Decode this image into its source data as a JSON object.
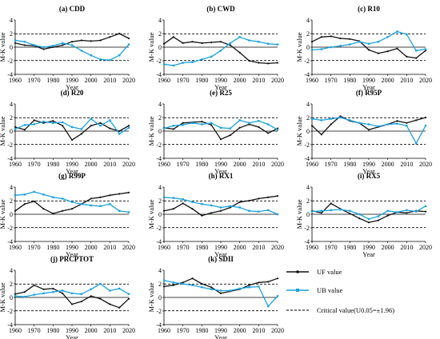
{
  "legend": {
    "uf_label": "UF value",
    "ub_label": "UB value",
    "crit_label": "Critical value(U0.05=±1.96)"
  },
  "colors": {
    "uf": "#111111",
    "ub": "#1aa3e0",
    "critical": "#000000",
    "zero": "#000000"
  },
  "chart_data": [
    {
      "type": "line",
      "title": "(a) CDD",
      "xlabel": "Year",
      "ylabel": "M-K value",
      "xlim": [
        1960,
        2020
      ],
      "ylim": [
        -4,
        4
      ],
      "xticks": [
        1960,
        1970,
        1980,
        1990,
        2000,
        2010,
        2020
      ],
      "yticks": [
        -4,
        -2,
        0,
        2,
        4
      ],
      "critical": [
        -1.96,
        1.96
      ],
      "x": [
        1960,
        1965,
        1970,
        1975,
        1980,
        1985,
        1990,
        1995,
        2000,
        2005,
        2010,
        2015,
        2020
      ],
      "series": [
        {
          "name": "UF value",
          "values": [
            0.6,
            0.3,
            0.2,
            -0.3,
            0.0,
            0.3,
            0.8,
            1.0,
            0.9,
            1.0,
            1.5,
            2.0,
            1.3
          ]
        },
        {
          "name": "UB value",
          "values": [
            1.0,
            0.8,
            0.3,
            0.0,
            0.2,
            0.6,
            0.3,
            -0.5,
            -1.2,
            -1.8,
            -1.9,
            -1.2,
            0.4
          ]
        }
      ]
    },
    {
      "type": "line",
      "title": "(b) CWD",
      "xlabel": "Year",
      "ylabel": "M-K value",
      "xlim": [
        1960,
        2020
      ],
      "ylim": [
        -4,
        4
      ],
      "xticks": [
        1960,
        1970,
        1980,
        1990,
        2000,
        2010,
        2020
      ],
      "yticks": [
        -4,
        -2,
        0,
        2,
        4
      ],
      "critical": [
        -1.96,
        1.96
      ],
      "x": [
        1960,
        1965,
        1970,
        1975,
        1980,
        1985,
        1990,
        1995,
        2000,
        2005,
        2010,
        2015,
        2020
      ],
      "series": [
        {
          "name": "UF value",
          "values": [
            0.5,
            1.5,
            0.6,
            0.8,
            0.6,
            0.7,
            0.8,
            0.3,
            -0.8,
            -2.0,
            -2.3,
            -2.4,
            -2.3
          ]
        },
        {
          "name": "UB value",
          "values": [
            -2.5,
            -2.7,
            -2.3,
            -2.2,
            -1.8,
            -1.4,
            -0.5,
            0.6,
            1.5,
            1.0,
            0.8,
            0.5,
            0.4
          ]
        }
      ]
    },
    {
      "type": "line",
      "title": "(c) R10",
      "xlabel": "Year",
      "ylabel": "M-K value",
      "xlim": [
        1960,
        2020
      ],
      "ylim": [
        -4,
        4
      ],
      "xticks": [
        1960,
        1970,
        1980,
        1990,
        2000,
        2010,
        2020
      ],
      "yticks": [
        -4,
        -2,
        0,
        2,
        4
      ],
      "critical": [
        -1.96,
        1.96
      ],
      "x": [
        1960,
        1965,
        1970,
        1975,
        1980,
        1985,
        1990,
        1995,
        2000,
        2005,
        2010,
        2015,
        2020
      ],
      "series": [
        {
          "name": "UF value",
          "values": [
            0.8,
            1.5,
            1.6,
            1.3,
            1.2,
            0.9,
            -0.4,
            -0.9,
            -0.6,
            -0.2,
            -1.4,
            -1.6,
            -0.5
          ]
        },
        {
          "name": "UB value",
          "values": [
            -0.4,
            -0.3,
            0.0,
            0.2,
            0.4,
            0.8,
            0.5,
            0.8,
            1.5,
            2.3,
            1.9,
            -0.5,
            -0.3
          ]
        }
      ]
    },
    {
      "type": "line",
      "title": "(d) R20",
      "xlabel": "Year",
      "ylabel": "M-K value",
      "xlim": [
        1960,
        2020
      ],
      "ylim": [
        -4,
        4
      ],
      "xticks": [
        1960,
        1970,
        1980,
        1990,
        2000,
        2010,
        2020
      ],
      "yticks": [
        -4,
        -2,
        0,
        2,
        4
      ],
      "critical": [
        -1.96,
        1.96
      ],
      "x": [
        1960,
        1965,
        1970,
        1975,
        1980,
        1985,
        1990,
        1995,
        2000,
        2005,
        2010,
        2015,
        2020
      ],
      "series": [
        {
          "name": "UF value",
          "values": [
            0.6,
            0.2,
            1.6,
            1.2,
            1.5,
            0.8,
            -1.3,
            -0.4,
            0.8,
            1.2,
            0.4,
            0.0,
            0.8
          ]
        },
        {
          "name": "UB value",
          "values": [
            0.3,
            0.9,
            1.0,
            1.4,
            1.2,
            1.3,
            0.6,
            0.3,
            1.8,
            0.8,
            1.6,
            -0.4,
            0.5
          ]
        }
      ]
    },
    {
      "type": "line",
      "title": "(e) R25",
      "xlabel": "Year",
      "ylabel": "M-K value",
      "xlim": [
        1960,
        2020
      ],
      "ylim": [
        -4,
        4
      ],
      "xticks": [
        1960,
        1970,
        1980,
        1990,
        2000,
        2010,
        2020
      ],
      "yticks": [
        -4,
        -2,
        0,
        2,
        4
      ],
      "critical": [
        -1.96,
        1.96
      ],
      "x": [
        1960,
        1965,
        1970,
        1975,
        1980,
        1985,
        1990,
        1995,
        2000,
        2005,
        2010,
        2015,
        2020
      ],
      "series": [
        {
          "name": "UF value",
          "values": [
            0.5,
            0.3,
            1.2,
            1.3,
            1.4,
            0.9,
            -1.2,
            -0.6,
            0.5,
            1.0,
            0.6,
            -0.3,
            0.4
          ]
        },
        {
          "name": "UB value",
          "values": [
            0.4,
            0.8,
            0.9,
            1.2,
            1.0,
            1.2,
            0.5,
            0.4,
            1.6,
            1.2,
            1.5,
            1.0,
            0.2
          ]
        }
      ]
    },
    {
      "type": "line",
      "title": "(f) R95P",
      "xlabel": "Year",
      "ylabel": "M-K value",
      "xlim": [
        1960,
        2020
      ],
      "ylim": [
        -4,
        4
      ],
      "xticks": [
        1960,
        1970,
        1980,
        1990,
        2000,
        2010,
        2020
      ],
      "yticks": [
        -4,
        -2,
        0,
        2,
        4
      ],
      "critical": [
        -1.96,
        1.96
      ],
      "x": [
        1960,
        1965,
        1970,
        1975,
        1980,
        1985,
        1990,
        1995,
        2000,
        2005,
        2010,
        2015,
        2020
      ],
      "series": [
        {
          "name": "UF value",
          "values": [
            0.8,
            -0.5,
            1.0,
            2.2,
            1.5,
            1.2,
            0.2,
            0.6,
            1.0,
            1.5,
            1.2,
            1.6,
            2.0
          ]
        },
        {
          "name": "UB value",
          "values": [
            1.8,
            1.6,
            1.8,
            2.0,
            1.6,
            1.2,
            1.0,
            0.7,
            1.0,
            1.1,
            0.8,
            -1.8,
            0.8
          ]
        }
      ]
    },
    {
      "type": "line",
      "title": "(g) R99P",
      "xlabel": "Year",
      "ylabel": "M-K value",
      "xlim": [
        1960,
        2020
      ],
      "ylim": [
        -4,
        4
      ],
      "xticks": [
        1960,
        1970,
        1980,
        1990,
        2000,
        2010,
        2020
      ],
      "yticks": [
        -4,
        -2,
        0,
        2,
        4
      ],
      "critical": [
        -1.96,
        1.96
      ],
      "x": [
        1960,
        1965,
        1970,
        1975,
        1980,
        1985,
        1990,
        1995,
        2000,
        2005,
        2010,
        2015,
        2020
      ],
      "series": [
        {
          "name": "UF value",
          "values": [
            0.5,
            1.5,
            1.9,
            0.8,
            0.1,
            0.5,
            0.8,
            1.5,
            2.3,
            2.5,
            2.8,
            3.0,
            3.2
          ]
        },
        {
          "name": "UB value",
          "values": [
            2.8,
            2.9,
            3.3,
            2.9,
            2.5,
            2.3,
            1.8,
            1.5,
            1.3,
            1.2,
            1.5,
            0.5,
            0.3
          ]
        }
      ]
    },
    {
      "type": "line",
      "title": "(h) RX1",
      "xlabel": "Year",
      "ylabel": "M-K value",
      "xlim": [
        1960,
        2020
      ],
      "ylim": [
        -4,
        4
      ],
      "xticks": [
        1960,
        1970,
        1980,
        1990,
        2000,
        2010,
        2020
      ],
      "yticks": [
        -4,
        -2,
        0,
        2,
        4
      ],
      "critical": [
        -1.96,
        1.96
      ],
      "x": [
        1960,
        1965,
        1970,
        1975,
        1980,
        1985,
        1990,
        1995,
        2000,
        2005,
        2010,
        2015,
        2020
      ],
      "series": [
        {
          "name": "UF value",
          "values": [
            0.5,
            0.8,
            1.6,
            0.8,
            -0.2,
            0.2,
            0.5,
            1.0,
            1.8,
            2.0,
            2.3,
            2.5,
            2.7
          ]
        },
        {
          "name": "UB value",
          "values": [
            2.5,
            2.4,
            2.2,
            1.8,
            1.5,
            1.3,
            1.0,
            1.2,
            1.0,
            0.5,
            0.4,
            0.6,
            0.0
          ]
        }
      ]
    },
    {
      "type": "line",
      "title": "(i) RX5",
      "xlabel": "Year",
      "ylabel": "M-K value",
      "xlim": [
        1960,
        2020
      ],
      "ylim": [
        -4,
        4
      ],
      "xticks": [
        1960,
        1970,
        1980,
        1990,
        2000,
        2010,
        2020
      ],
      "yticks": [
        -4,
        -2,
        0,
        2,
        4
      ],
      "critical": [
        -1.96,
        1.96
      ],
      "x": [
        1960,
        1965,
        1970,
        1975,
        1980,
        1985,
        1990,
        1995,
        2000,
        2005,
        2010,
        2015,
        2020
      ],
      "series": [
        {
          "name": "UF value",
          "values": [
            0.5,
            0.2,
            1.6,
            0.8,
            0.1,
            -0.6,
            -1.2,
            -0.9,
            -0.2,
            0.3,
            0.2,
            0.5,
            0.4
          ]
        },
        {
          "name": "UB value",
          "values": [
            0.4,
            0.5,
            0.6,
            0.7,
            0.5,
            0.0,
            -0.7,
            -0.3,
            0.5,
            0.3,
            0.6,
            0.4,
            1.2
          ]
        }
      ]
    },
    {
      "type": "line",
      "title": "(j) PRCPTOT",
      "xlabel": "Year",
      "ylabel": "M-K value",
      "xlim": [
        1960,
        2020
      ],
      "ylim": [
        -4,
        4
      ],
      "xticks": [
        1960,
        1970,
        1980,
        1990,
        2000,
        2010,
        2020
      ],
      "yticks": [
        -4,
        -2,
        0,
        2,
        4
      ],
      "critical": [
        -1.96,
        1.96
      ],
      "x": [
        1960,
        1965,
        1970,
        1975,
        1980,
        1985,
        1990,
        1995,
        2000,
        2005,
        2010,
        2015,
        2020
      ],
      "series": [
        {
          "name": "UF value",
          "values": [
            0.5,
            0.8,
            1.8,
            1.2,
            1.3,
            0.6,
            -1.0,
            -0.6,
            0.2,
            -0.2,
            -1.0,
            -1.5,
            -0.2
          ]
        },
        {
          "name": "UB value",
          "values": [
            0.2,
            0.1,
            0.4,
            0.6,
            0.8,
            1.0,
            0.6,
            0.5,
            1.2,
            2.0,
            1.0,
            1.3,
            0.5
          ]
        }
      ]
    },
    {
      "type": "line",
      "title": "(k) SDII",
      "xlabel": "Year",
      "ylabel": "M-K value",
      "xlim": [
        1960,
        2020
      ],
      "ylim": [
        -4,
        4
      ],
      "xticks": [
        1960,
        1970,
        1980,
        1990,
        2000,
        2010,
        2020
      ],
      "yticks": [
        -4,
        -2,
        0,
        2,
        4
      ],
      "critical": [
        -1.96,
        1.96
      ],
      "x": [
        1960,
        1965,
        1970,
        1975,
        1980,
        1985,
        1990,
        1995,
        2000,
        2005,
        2010,
        2015,
        2020
      ],
      "series": [
        {
          "name": "UF value",
          "values": [
            1.6,
            1.8,
            2.2,
            2.8,
            2.0,
            1.5,
            0.6,
            0.9,
            1.2,
            1.8,
            2.2,
            2.3,
            2.8
          ]
        },
        {
          "name": "UB value",
          "values": [
            2.5,
            2.2,
            2.0,
            1.8,
            1.5,
            1.2,
            1.0,
            1.0,
            1.3,
            1.5,
            1.6,
            -1.3,
            0.2
          ]
        }
      ]
    }
  ]
}
